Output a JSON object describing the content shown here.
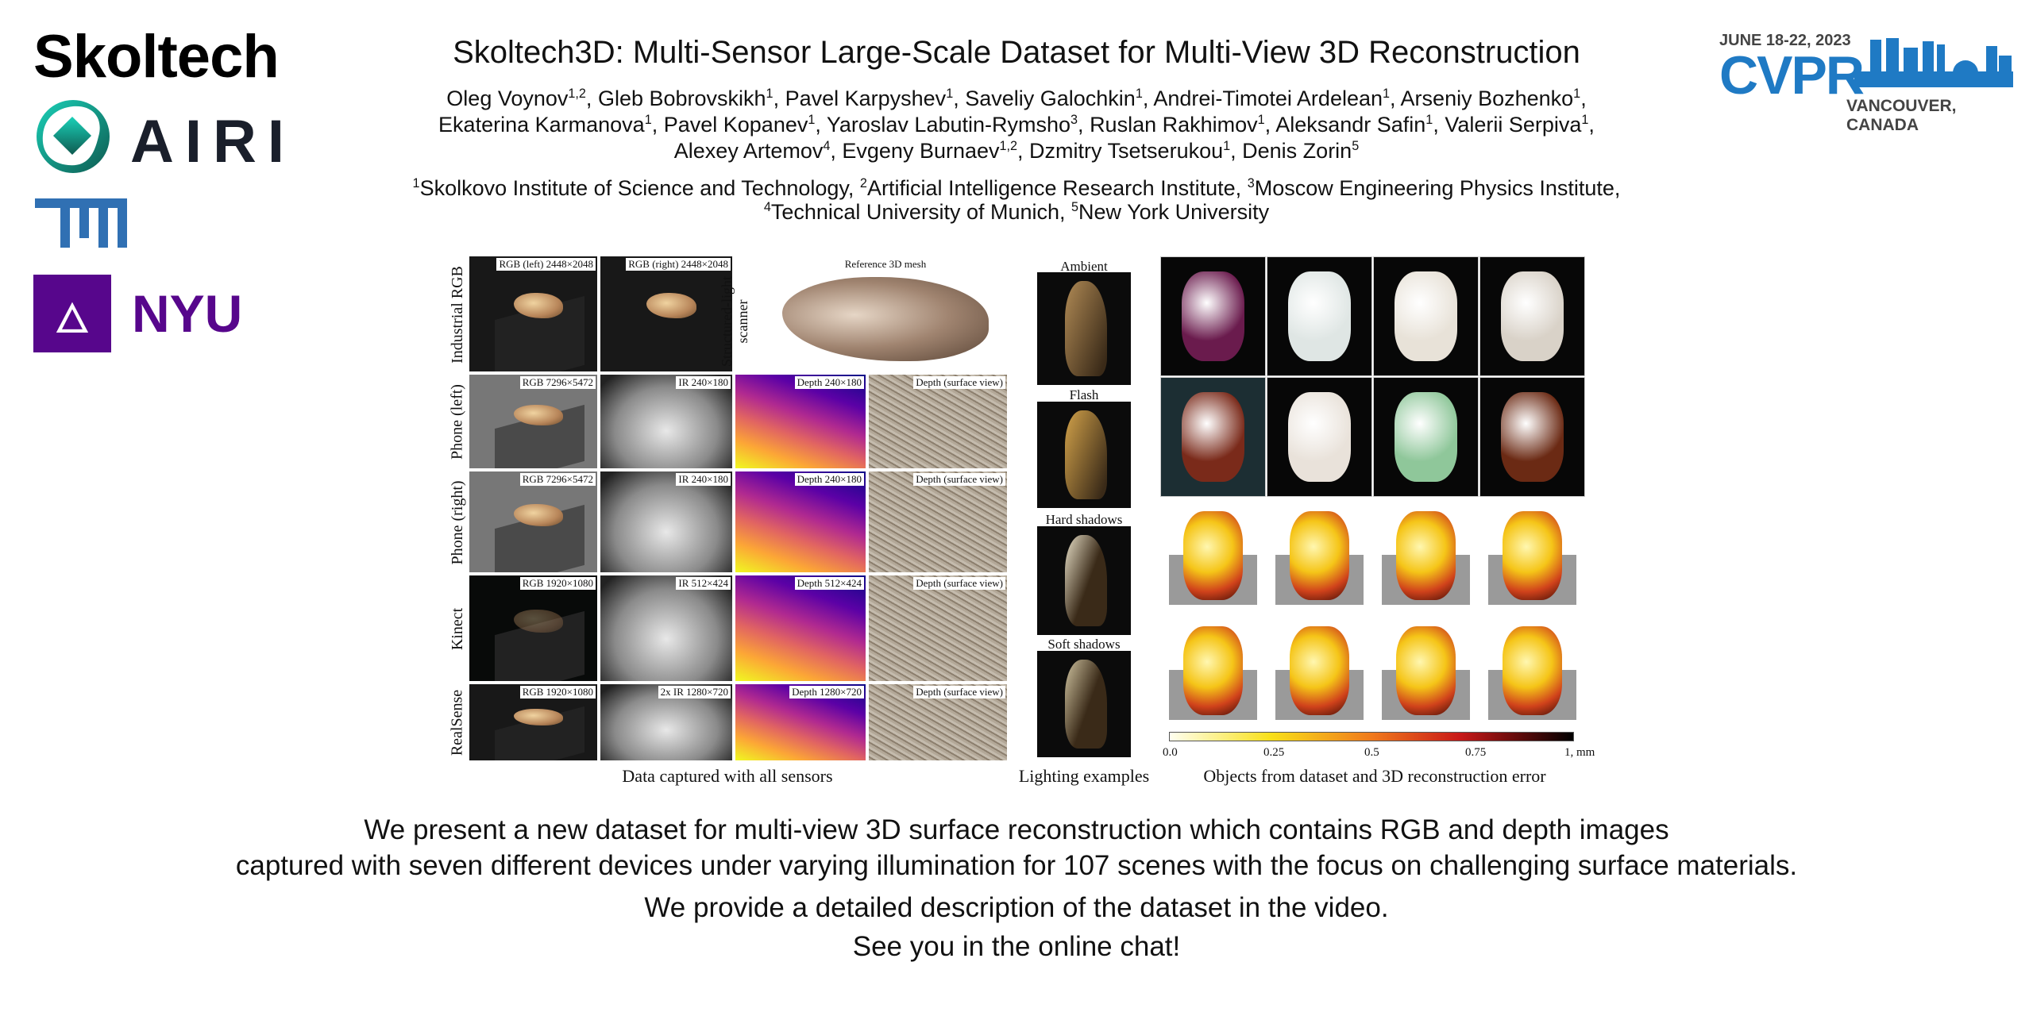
{
  "logos": {
    "skoltech": "Skoltech",
    "airi": "AIRI",
    "tum": "TUM",
    "nyu": "NYU",
    "cvpr": {
      "date": "JUNE 18-22, 2023",
      "name": "CVPR",
      "place": "VANCOUVER, CANADA"
    }
  },
  "colors": {
    "tum": "#3070b3",
    "nyu": "#57068c",
    "airi_teal": "#18a899",
    "cvpr_blue": "#1f7ac4"
  },
  "title": "Skoltech3D: Multi-Sensor Large-Scale Dataset for Multi-View 3D Reconstruction",
  "authors": [
    [
      [
        "Oleg Voynov",
        "1,2"
      ],
      [
        "Gleb Bobrovskikh",
        "1"
      ],
      [
        "Pavel Karpyshev",
        "1"
      ],
      [
        "Saveliy Galochkin",
        "1"
      ],
      [
        "Andrei-Timotei Ardelean",
        "1"
      ],
      [
        "Arseniy Bozhenko",
        "1"
      ]
    ],
    [
      [
        "Ekaterina Karmanova",
        "1"
      ],
      [
        "Pavel Kopanev",
        "1"
      ],
      [
        "Yaroslav Labutin-Rymsho",
        "3"
      ],
      [
        "Ruslan Rakhimov",
        "1"
      ],
      [
        "Aleksandr Safin",
        "1"
      ],
      [
        "Valerii Serpiva",
        "1"
      ]
    ],
    [
      [
        "Alexey Artemov",
        "4"
      ],
      [
        "Evgeny Burnaev",
        "1,2"
      ],
      [
        "Dzmitry Tsetserukou",
        "1"
      ],
      [
        "Denis Zorin",
        "5"
      ]
    ]
  ],
  "affiliations": [
    [
      [
        "1",
        "Skolkovo Institute of Science and Technology"
      ],
      [
        "2",
        "Artificial Intelligence Research Institute"
      ],
      [
        "3",
        "Moscow Engineering Physics Institute"
      ]
    ],
    [
      [
        "4",
        "Technical University of Munich"
      ],
      [
        "5",
        "New York University"
      ]
    ]
  ],
  "figure": {
    "sensors": {
      "rows": [
        "Industrial RGB",
        "Phone (left)",
        "Phone (right)",
        "Kinect",
        "RealSense"
      ],
      "structured_light": "Structured-light scanner",
      "reference_mesh": "Reference 3D mesh",
      "labels": [
        [
          "RGB (left) 2448×2048",
          "RGB (right) 2448×2048"
        ],
        [
          "RGB 7296×5472",
          "IR 240×180",
          "Depth 240×180",
          "Depth (surface view)"
        ],
        [
          "RGB 7296×5472",
          "IR 240×180",
          "Depth 240×180",
          "Depth (surface view)"
        ],
        [
          "RGB 1920×1080",
          "IR 512×424",
          "Depth 512×424",
          "Depth (surface view)"
        ],
        [
          "RGB 1920×1080",
          "2x IR 1280×720",
          "Depth 1280×720",
          "Depth (surface view)"
        ]
      ],
      "caption": "Data captured with all sensors"
    },
    "lighting": {
      "labels": [
        "Ambient",
        "Flash",
        "Hard shadows",
        "Soft shadows"
      ],
      "caption": "Lighting examples"
    },
    "objects": {
      "photo_colors": [
        "#6a1b4d",
        "#dfe6e4",
        "#e8e2d8",
        "#d9d2c8",
        "#7a2a1a",
        "#e9e2da",
        "#8fc79a",
        "#6b2a14"
      ],
      "colorbar": {
        "ticks": [
          "0.0",
          "0.25",
          "0.5",
          "0.75",
          "1, mm"
        ]
      },
      "caption": "Objects from dataset and 3D reconstruction error"
    }
  },
  "summary": [
    "We present a new dataset for multi-view 3D surface reconstruction which contains RGB and depth images",
    "captured with seven different devices under varying illumination for 107 scenes with the focus on challenging surface materials.",
    "We provide a detailed description of the dataset in the video.",
    "See you in the online chat!"
  ]
}
